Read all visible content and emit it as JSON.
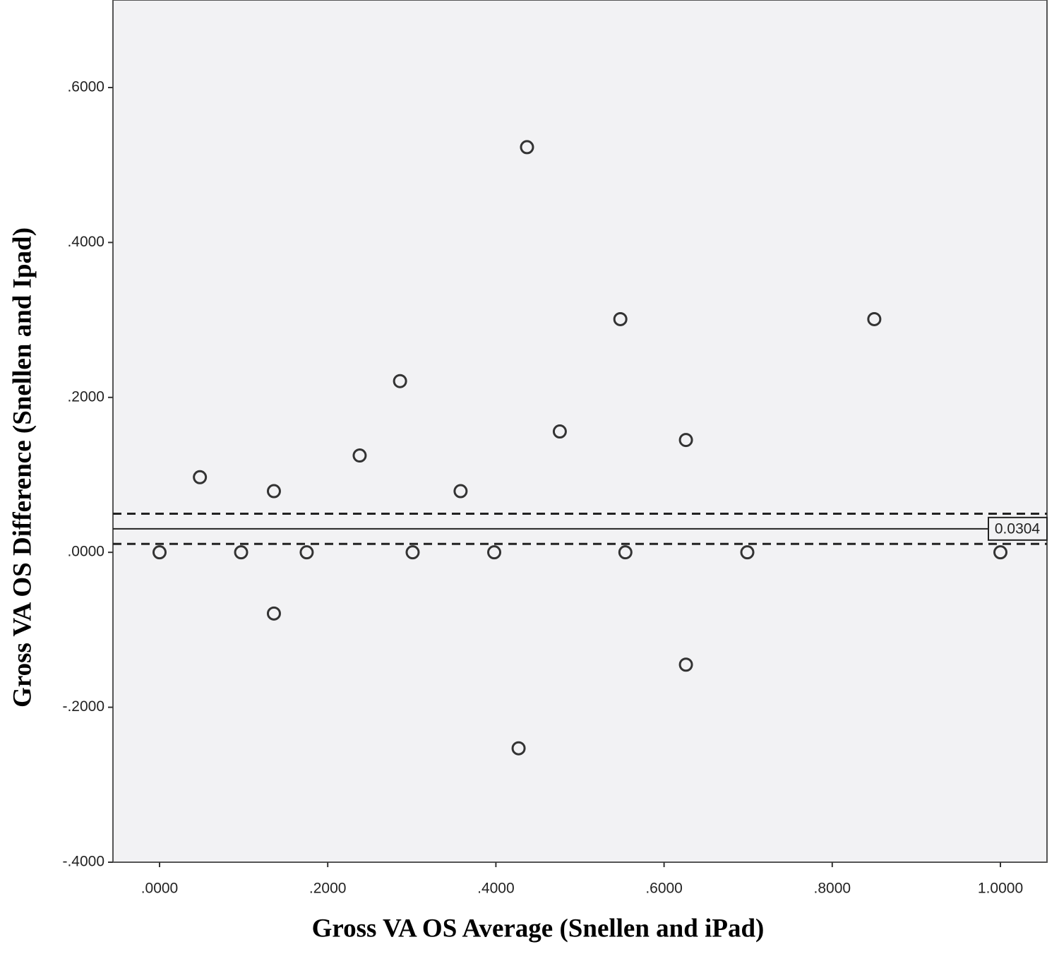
{
  "chart_data": {
    "type": "scatter",
    "x_label": "Gross VA OS Average (Snellen and iPad)",
    "y_label": "Gross VA OS Difference (Snellen and Ipad)",
    "x": [
      0,
      0.048,
      0.097,
      0.136,
      0.136,
      0.175,
      0.238,
      0.286,
      0.301,
      0.358,
      0.398,
      0.427,
      0.437,
      0.476,
      0.548,
      0.554,
      0.626,
      0.626,
      0.699,
      0.85,
      1.0
    ],
    "values": [
      0,
      0.097,
      0,
      0.079,
      -0.079,
      0,
      0.125,
      0.221,
      0,
      0.079,
      0,
      -0.253,
      0.523,
      0.156,
      0.301,
      0,
      0.145,
      -0.145,
      0,
      0.301,
      0
    ],
    "color": "#333333",
    "xlim": [
      -0.0554,
      1.0554
    ],
    "ylim": [
      -0.4,
      0.713
    ],
    "xticks": [
      {
        "value": 0,
        "label": ".0000"
      },
      {
        "value": 0.2,
        "label": ".2000"
      },
      {
        "value": 0.4,
        "label": ".4000"
      },
      {
        "value": 0.6,
        "label": ".6000"
      },
      {
        "value": 0.8,
        "label": ".8000"
      },
      {
        "value": 1,
        "label": "1.0000"
      }
    ],
    "yticks": [
      {
        "value": -0.4,
        "label": "-.4000"
      },
      {
        "value": -0.2,
        "label": "-.2000"
      },
      {
        "value": 0,
        "label": ".0000"
      },
      {
        "value": 0.2,
        "label": ".2000"
      },
      {
        "value": 0.4,
        "label": ".4000"
      },
      {
        "value": 0.6,
        "label": ".6000"
      }
    ],
    "mean_line": {
      "value": 0.0304,
      "label": "0.0304"
    },
    "limit_lines": [
      0.0499,
      0.0109
    ]
  }
}
